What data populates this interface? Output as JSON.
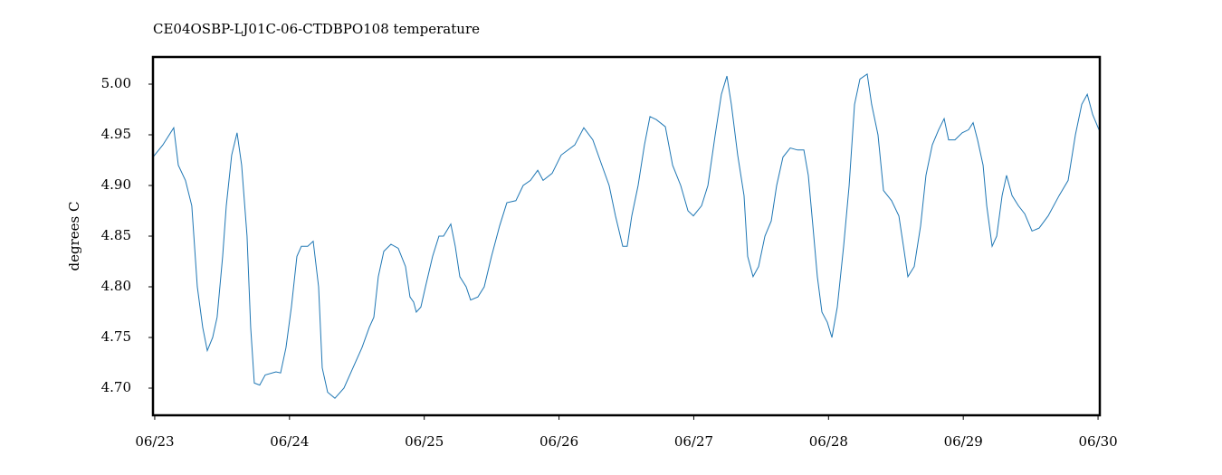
{
  "chart_data": {
    "type": "line",
    "title": "CE04OSBP-LJ01C-06-CTDBPO108 temperature",
    "y_label": "degrees C",
    "color": "#1f77b4",
    "x": [
      -0.013,
      0.06,
      0.141,
      0.175,
      0.228,
      0.275,
      0.316,
      0.356,
      0.39,
      0.43,
      0.463,
      0.504,
      0.531,
      0.571,
      0.611,
      0.645,
      0.685,
      0.712,
      0.739,
      0.779,
      0.82,
      0.9,
      0.934,
      0.974,
      1.014,
      1.055,
      1.088,
      1.135,
      1.176,
      1.216,
      1.243,
      1.283,
      1.337,
      1.404,
      1.471,
      1.538,
      1.592,
      1.626,
      1.659,
      1.7,
      1.753,
      1.807,
      1.861,
      1.894,
      1.921,
      1.941,
      1.975,
      2.009,
      2.062,
      2.109,
      2.143,
      2.197,
      2.23,
      2.264,
      2.311,
      2.344,
      2.398,
      2.445,
      2.499,
      2.559,
      2.613,
      2.68,
      2.734,
      2.788,
      2.842,
      2.882,
      2.949,
      3.016,
      3.117,
      3.184,
      3.251,
      3.318,
      3.372,
      3.419,
      3.473,
      3.506,
      3.54,
      3.587,
      3.634,
      3.675,
      3.722,
      3.789,
      3.843,
      3.903,
      3.957,
      3.997,
      4.058,
      4.105,
      4.159,
      4.205,
      4.246,
      4.279,
      4.326,
      4.373,
      4.4,
      4.44,
      4.481,
      4.528,
      4.575,
      4.615,
      4.662,
      4.716,
      4.77,
      4.817,
      4.85,
      4.884,
      4.917,
      4.951,
      4.991,
      5.025,
      5.065,
      5.112,
      5.153,
      5.193,
      5.233,
      5.287,
      5.32,
      5.367,
      5.408,
      5.468,
      5.522,
      5.556,
      5.589,
      5.636,
      5.683,
      5.723,
      5.77,
      5.817,
      5.858,
      5.891,
      5.938,
      5.992,
      6.039,
      6.073,
      6.106,
      6.147,
      6.174,
      6.214,
      6.248,
      6.288,
      6.321,
      6.362,
      6.409,
      6.456,
      6.51,
      6.563,
      6.63,
      6.711,
      6.778,
      6.832,
      6.879,
      6.92,
      6.96,
      7.007
    ],
    "values": [
      4.928,
      4.94,
      4.957,
      4.92,
      4.905,
      4.88,
      4.8,
      4.76,
      4.737,
      4.75,
      4.77,
      4.83,
      4.88,
      4.93,
      4.952,
      4.92,
      4.85,
      4.76,
      4.705,
      4.703,
      4.713,
      4.716,
      4.715,
      4.74,
      4.78,
      4.83,
      4.84,
      4.84,
      4.845,
      4.8,
      4.72,
      4.696,
      4.69,
      4.7,
      4.72,
      4.74,
      4.76,
      4.77,
      4.81,
      4.835,
      4.842,
      4.838,
      4.82,
      4.79,
      4.785,
      4.775,
      4.78,
      4.8,
      4.83,
      4.85,
      4.85,
      4.862,
      4.84,
      4.81,
      4.8,
      4.787,
      4.79,
      4.8,
      4.83,
      4.86,
      4.883,
      4.885,
      4.9,
      4.905,
      4.915,
      4.905,
      4.912,
      4.93,
      4.94,
      4.957,
      4.945,
      4.92,
      4.9,
      4.87,
      4.84,
      4.84,
      4.87,
      4.9,
      4.94,
      4.968,
      4.965,
      4.958,
      4.92,
      4.9,
      4.875,
      4.87,
      4.88,
      4.9,
      4.95,
      4.99,
      5.008,
      4.98,
      4.93,
      4.89,
      4.83,
      4.81,
      4.82,
      4.85,
      4.865,
      4.9,
      4.928,
      4.937,
      4.935,
      4.935,
      4.91,
      4.86,
      4.81,
      4.775,
      4.765,
      4.75,
      4.78,
      4.84,
      4.9,
      4.98,
      5.005,
      5.01,
      4.98,
      4.95,
      4.895,
      4.885,
      4.87,
      4.84,
      4.81,
      4.82,
      4.86,
      4.91,
      4.94,
      4.955,
      4.966,
      4.945,
      4.945,
      4.952,
      4.955,
      4.962,
      4.945,
      4.92,
      4.88,
      4.84,
      4.85,
      4.89,
      4.91,
      4.89,
      4.88,
      4.872,
      4.855,
      4.858,
      4.87,
      4.89,
      4.905,
      4.95,
      4.98,
      4.99,
      4.97,
      4.955
    ],
    "xlim": [
      -0.013,
      7.013
    ],
    "xticks": [
      {
        "value": 0,
        "label": "06/23"
      },
      {
        "value": 1,
        "label": "06/24"
      },
      {
        "value": 2,
        "label": "06/25"
      },
      {
        "value": 3,
        "label": "06/26"
      },
      {
        "value": 4,
        "label": "06/27"
      },
      {
        "value": 5,
        "label": "06/28"
      },
      {
        "value": 6,
        "label": "06/29"
      },
      {
        "value": 7,
        "label": "06/30"
      }
    ],
    "ylim": [
      4.6732,
      5.0268
    ],
    "yticks": [
      {
        "value": 4.7,
        "label": "4.70"
      },
      4.75,
      {
        "value": 4.8,
        "label": "4.80"
      },
      4.85,
      {
        "value": 4.9,
        "label": "4.90"
      },
      4.95,
      {
        "value": 5.0,
        "label": "5.00"
      }
    ],
    "grid": false
  }
}
